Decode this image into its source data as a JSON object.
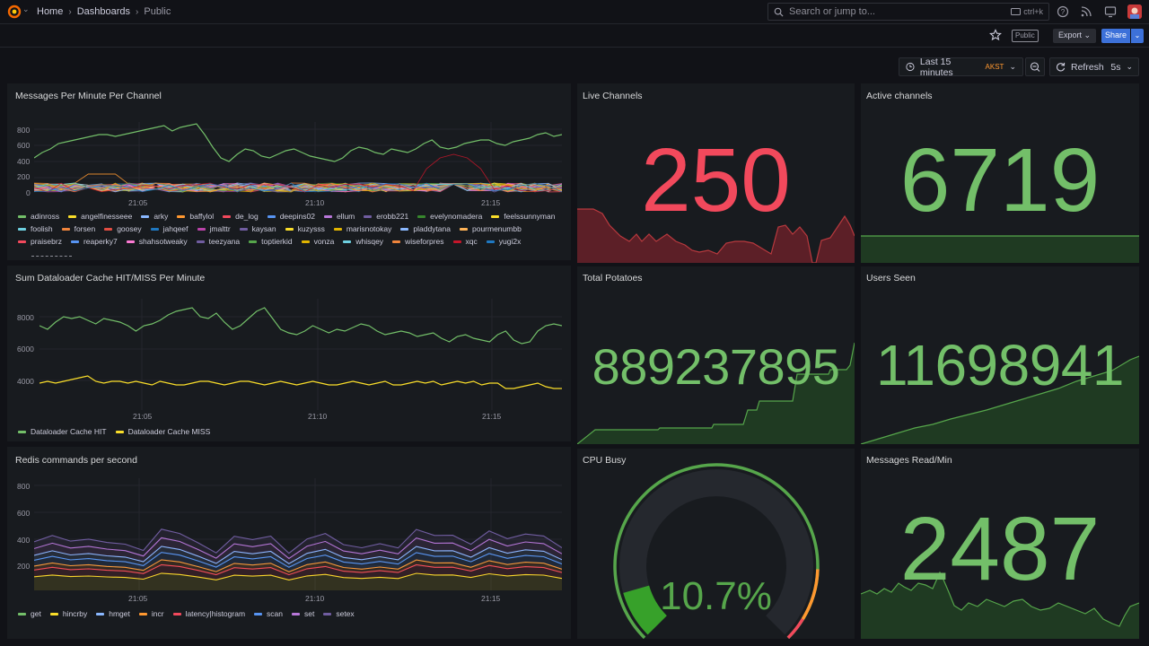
{
  "breadcrumb": {
    "home": "Home",
    "dashboards": "Dashboards",
    "current": "Public"
  },
  "search": {
    "placeholder": "Search or jump to...",
    "shortcut": "ctrl+k"
  },
  "toolbar": {
    "public_badge": "Public",
    "export_label": "Export",
    "share_label": "Share"
  },
  "timepicker": {
    "range": "Last 15 minutes",
    "timezone": "AKST",
    "refresh_label": "Refresh",
    "refresh_interval": "5s"
  },
  "colors": {
    "green": "#73bf69",
    "red": "#f2495c",
    "bg": "#181b1f",
    "page": "#111217"
  },
  "panels": {
    "messages_per_minute": {
      "title": "Messages Per Minute Per Channel",
      "yticks": [
        "800",
        "600",
        "400",
        "200",
        "0"
      ],
      "xticks": [
        "21:05",
        "21:10",
        "21:15"
      ],
      "legend": [
        {
          "name": "adinross",
          "color": "#73bf69"
        },
        {
          "name": "angelfinesseee",
          "color": "#fade2a"
        },
        {
          "name": "arky",
          "color": "#8ab8ff"
        },
        {
          "name": "baffylol",
          "color": "#ff9830"
        },
        {
          "name": "de_log",
          "color": "#f2495c"
        },
        {
          "name": "deepins02",
          "color": "#5794f2"
        },
        {
          "name": "ellum",
          "color": "#b877d9"
        },
        {
          "name": "erobb221",
          "color": "#705da0"
        },
        {
          "name": "evelynomadera",
          "color": "#37872d"
        },
        {
          "name": "feelssunnyman",
          "color": "#fade2a"
        },
        {
          "name": "foolish",
          "color": "#6ed0e0"
        },
        {
          "name": "forsen",
          "color": "#ef843c"
        },
        {
          "name": "goosey",
          "color": "#e24d42"
        },
        {
          "name": "jahqeef",
          "color": "#1f78c1"
        },
        {
          "name": "jmalttr",
          "color": "#ba43a9"
        },
        {
          "name": "kaysan",
          "color": "#705da0"
        },
        {
          "name": "kuzysss",
          "color": "#fade2a"
        },
        {
          "name": "marisnotokay",
          "color": "#e0b400"
        },
        {
          "name": "pladdytana",
          "color": "#8ab8ff"
        },
        {
          "name": "pourmenumbb",
          "color": "#ffb357"
        },
        {
          "name": "praisebrz",
          "color": "#f2495c"
        },
        {
          "name": "reaperky7",
          "color": "#5794f2"
        },
        {
          "name": "shahsotweaky",
          "color": "#fc7ad3"
        },
        {
          "name": "teezyana",
          "color": "#705da0"
        },
        {
          "name": "toptierkid",
          "color": "#56a64b"
        },
        {
          "name": "vonza",
          "color": "#e0b400"
        },
        {
          "name": "whisqey",
          "color": "#6ed0e0"
        },
        {
          "name": "wiseforpres",
          "color": "#ef843c"
        },
        {
          "name": "xqc",
          "color": "#c4162a"
        },
        {
          "name": "yugi2x",
          "color": "#1f78c1"
        }
      ]
    },
    "dataloader": {
      "title": "Sum Dataloader Cache HIT/MISS Per Minute",
      "yticks": [
        "8000",
        "6000",
        "4000"
      ],
      "xticks": [
        "21:05",
        "21:10",
        "21:15"
      ],
      "legend": [
        {
          "name": "Dataloader Cache HIT",
          "color": "#73bf69"
        },
        {
          "name": "Dataloader Cache MISS",
          "color": "#fade2a"
        }
      ]
    },
    "redis": {
      "title": "Redis commands per second",
      "yticks": [
        "800",
        "600",
        "400",
        "200"
      ],
      "xticks": [
        "21:05",
        "21:10",
        "21:15"
      ],
      "legend": [
        {
          "name": "get",
          "color": "#73bf69"
        },
        {
          "name": "hincrby",
          "color": "#fade2a"
        },
        {
          "name": "hmget",
          "color": "#8ab8ff"
        },
        {
          "name": "incr",
          "color": "#ff9830"
        },
        {
          "name": "latency|histogram",
          "color": "#f2495c"
        },
        {
          "name": "scan",
          "color": "#5794f2"
        },
        {
          "name": "set",
          "color": "#b877d9"
        },
        {
          "name": "setex",
          "color": "#705da0"
        }
      ]
    },
    "live_channels": {
      "title": "Live Channels",
      "value": "250"
    },
    "active_channels": {
      "title": "Active channels",
      "value": "6719"
    },
    "total_potatoes": {
      "title": "Total Potatoes",
      "value": "889237895"
    },
    "users_seen": {
      "title": "Users Seen",
      "value": "11698941"
    },
    "cpu_busy": {
      "title": "CPU Busy",
      "value": "10.7%",
      "fraction": 0.107
    },
    "messages_read": {
      "title": "Messages Read/Min",
      "value": "2487"
    }
  }
}
